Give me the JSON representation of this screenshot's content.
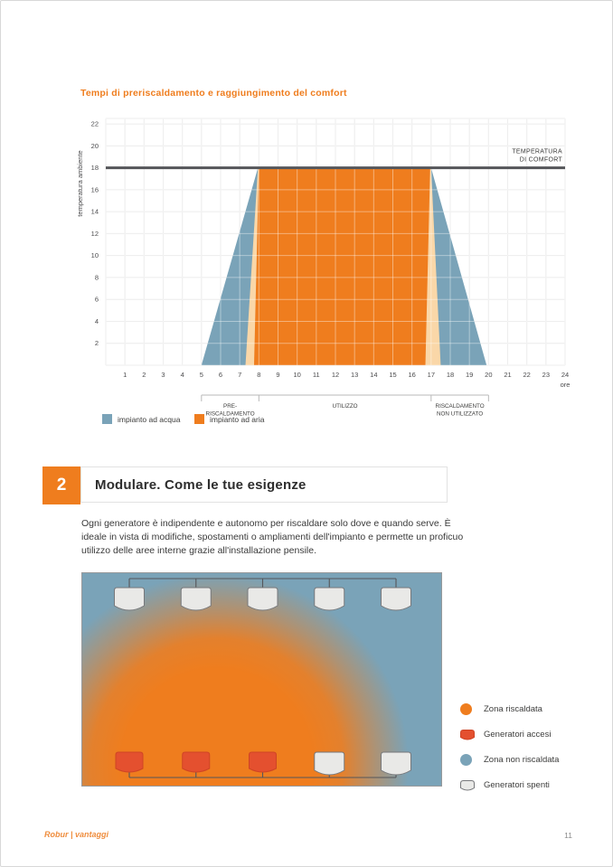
{
  "chart_data": {
    "type": "area",
    "title": "Tempi di preriscaldamento e raggiungimento del comfort",
    "ylabel": "temperatura ambiente",
    "x_unit": "ore",
    "xlim": [
      0,
      24
    ],
    "ylim": [
      0,
      22.5
    ],
    "x_ticks": [
      1,
      2,
      3,
      4,
      5,
      6,
      7,
      8,
      9,
      10,
      11,
      12,
      13,
      14,
      15,
      16,
      17,
      18,
      19,
      20,
      21,
      22,
      23,
      24
    ],
    "y_ticks": [
      2,
      4,
      6,
      8,
      10,
      12,
      14,
      16,
      18,
      20,
      22
    ],
    "grid": true,
    "comfort_line": {
      "value": 18,
      "label_lines": [
        "TEMPERATURA",
        "DI COMFORT"
      ],
      "color": "#55565A"
    },
    "series": [
      {
        "name": "impianto ad acqua",
        "color": "#7AA3B8",
        "points": [
          [
            5,
            0
          ],
          [
            7.95,
            18
          ],
          [
            17,
            18
          ],
          [
            19.9,
            0
          ]
        ]
      },
      {
        "name": "",
        "color": "#FAD7A8",
        "points": [
          [
            7.3,
            0
          ],
          [
            7.95,
            18
          ],
          [
            17,
            18
          ],
          [
            17.5,
            0
          ]
        ]
      },
      {
        "name": "impianto ad aria",
        "color": "#EF7D1E",
        "points": [
          [
            7.75,
            0
          ],
          [
            8,
            18
          ],
          [
            16.95,
            18
          ],
          [
            16.7,
            0
          ]
        ]
      }
    ],
    "phases": [
      {
        "lines": [
          "PRE-",
          "RISCALDAMENTO"
        ],
        "from": 5,
        "to": 8
      },
      {
        "lines": [
          "UTILIZZO"
        ],
        "from": 8,
        "to": 17
      },
      {
        "lines": [
          "RISCALDAMENTO",
          "NON UTILIZZATO"
        ],
        "from": 17,
        "to": 20
      }
    ],
    "legend": [
      {
        "label": "impianto ad acqua",
        "color": "#7AA3B8"
      },
      {
        "label": "impianto ad aria",
        "color": "#EF7D1E"
      }
    ],
    "legend_position": "bottom-left"
  },
  "section": {
    "number": "2",
    "title": "Modulare. Come le tue esigenze",
    "body": "Ogni generatore è indipendente e autonomo per riscaldare solo dove e quando serve. È ideale in vista di modifiche, spostamenti o ampliamenti dell'impianto e permette un proficuo utilizzo delle aree interne grazie all'installazione pensile."
  },
  "illustration": {
    "background_color": "#7AA3B8",
    "glow_color": "#EF7D1E",
    "generator_on_color": "#E4502F",
    "generator_on_stroke": "#CF4425",
    "generator_off_color": "#E9E9E7",
    "generator_off_stroke": "#77787B",
    "rows": [
      {
        "id": "top",
        "generators": [
          "off",
          "off",
          "off",
          "off",
          "off"
        ]
      },
      {
        "id": "bottom",
        "generators": [
          "on",
          "on",
          "on",
          "off",
          "off"
        ]
      }
    ],
    "legend": [
      {
        "swatch": "circle",
        "color": "#EF7D1E",
        "label": "Zona riscaldata"
      },
      {
        "swatch": "generator",
        "color": "#E4502F",
        "stroke": "#CF4425",
        "label": "Generatori accesi"
      },
      {
        "swatch": "circle",
        "color": "#7AA3B8",
        "label": "Zona non riscaldata"
      },
      {
        "swatch": "generator",
        "color": "#E9E9E7",
        "stroke": "#77787B",
        "label": "Generatori spenti"
      }
    ]
  },
  "footer": {
    "left": "Robur | vantaggi",
    "page": "11"
  }
}
